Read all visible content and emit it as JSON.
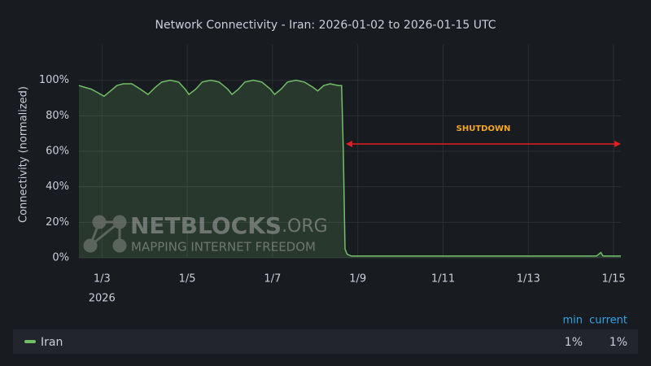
{
  "chart_data": {
    "type": "line",
    "title": "Network Connectivity - Iran: 2026-01-02 to 2026-01-15 UTC",
    "y_label": "Connectivity (normalized)",
    "x_year_label": "2026",
    "x": [
      2.46,
      2.6,
      2.75,
      2.9,
      3.05,
      3.2,
      3.35,
      3.5,
      3.7,
      3.9,
      4.08,
      4.25,
      4.4,
      4.6,
      4.8,
      4.95,
      5.04,
      5.2,
      5.35,
      5.55,
      5.75,
      5.95,
      6.05,
      6.2,
      6.35,
      6.55,
      6.75,
      6.95,
      7.05,
      7.2,
      7.35,
      7.55,
      7.75,
      7.95,
      8.06,
      8.2,
      8.35,
      8.55,
      8.62,
      8.66,
      8.7,
      8.75,
      8.85,
      9.5,
      10.5,
      11.5,
      12.5,
      13.5,
      14.6,
      14.7,
      14.75,
      15.17
    ],
    "series": [
      {
        "name": "Iran",
        "color": "#73bf69",
        "values": [
          97,
          96,
          95,
          93,
          91,
          94,
          97,
          98,
          98,
          95,
          92,
          96,
          99,
          100,
          99,
          95,
          92,
          95,
          99,
          100,
          99,
          95,
          92,
          95,
          99,
          100,
          99,
          95,
          92,
          95,
          99,
          100,
          99,
          96,
          94,
          97,
          98,
          97,
          97,
          60,
          5,
          2,
          1,
          1,
          1,
          1,
          1,
          1,
          1,
          3,
          1,
          1
        ],
        "legend_values": [
          {
            "value": 1,
            "label": "1%"
          },
          {
            "value": 1,
            "label": "1%"
          }
        ]
      }
    ],
    "legend_columns": [
      "min",
      "current"
    ],
    "xlim": [
      2.46,
      15.17
    ],
    "xticks": [
      {
        "value": 3,
        "label": "1/3"
      },
      {
        "value": 5,
        "label": "1/5"
      },
      {
        "value": 7,
        "label": "1/7"
      },
      {
        "value": 9,
        "label": "1/9"
      },
      {
        "value": 11,
        "label": "1/11"
      },
      {
        "value": 13,
        "label": "1/13"
      },
      {
        "value": 15,
        "label": "1/15"
      }
    ],
    "ylim": [
      0,
      120
    ],
    "yticks": [
      {
        "value": 0,
        "label": "0%"
      },
      {
        "value": 20,
        "label": "20%"
      },
      {
        "value": 40,
        "label": "40%"
      },
      {
        "value": 60,
        "label": "60%"
      },
      {
        "value": 80,
        "label": "80%"
      },
      {
        "value": 100,
        "label": "100%"
      }
    ],
    "grid": true,
    "annotation": "SHUTDOWN",
    "watermark": {
      "brand": "NETBLOCKS",
      "suffix": ".ORG",
      "tagline": "MAPPING INTERNET FREEDOM"
    }
  }
}
